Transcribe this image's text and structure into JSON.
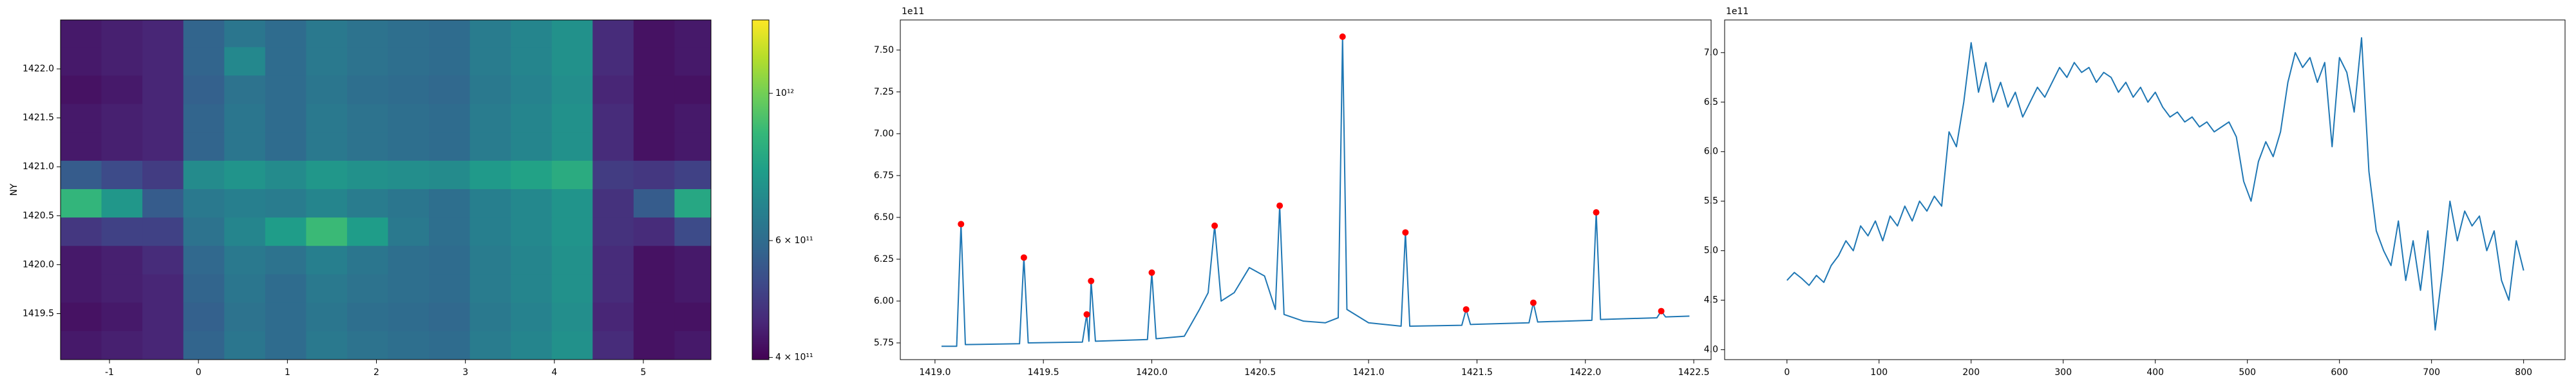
{
  "chart_data": [
    {
      "type": "heatmap",
      "ylabel": "NY",
      "colormap": "viridis",
      "log_color": true,
      "xlim": [
        -1.55,
        5.76
      ],
      "ylim": [
        1419.03,
        1422.5
      ],
      "xticks": [
        -1,
        0,
        1,
        2,
        3,
        4,
        5
      ],
      "yticks": [
        1419.5,
        {
          "value": 1420,
          "label": "1420.0"
        },
        1420.5,
        {
          "value": 1421,
          "label": "1421.0"
        },
        1421.5,
        {
          "value": 1422,
          "label": "1422.0"
        }
      ],
      "clim": [
        397000000000.0,
        1290000000000.0
      ],
      "cticks": [
        {
          "value": 400000000000.0,
          "label": "4 × 10¹¹"
        },
        {
          "value": 600000000000.0,
          "label": "6 × 10¹¹"
        },
        {
          "value": 1000000000000.0,
          "label": "10¹²"
        }
      ],
      "x": [
        -1.32,
        -0.86,
        -0.4,
        0.06,
        0.52,
        0.98,
        1.44,
        1.9,
        2.36,
        2.82,
        3.28,
        3.74,
        4.2,
        4.66,
        5.12,
        5.58
      ],
      "y": [
        1419.18,
        1419.47,
        1419.76,
        1420.05,
        1420.34,
        1420.63,
        1420.92,
        1421.21,
        1421.5,
        1421.79,
        1422.08,
        1422.37
      ],
      "z": [
        [
          430000000000.0,
          440000000000.0,
          450000000000.0,
          580000000000.0,
          630000000000.0,
          600000000000.0,
          640000000000.0,
          620000000000.0,
          610000000000.0,
          600000000000.0,
          650000000000.0,
          680000000000.0,
          720000000000.0,
          460000000000.0,
          420000000000.0,
          430000000000.0
        ],
        [
          420000000000.0,
          430000000000.0,
          450000000000.0,
          570000000000.0,
          620000000000.0,
          600000000000.0,
          630000000000.0,
          610000000000.0,
          600000000000.0,
          590000000000.0,
          640000000000.0,
          670000000000.0,
          710000000000.0,
          450000000000.0,
          420000000000.0,
          420000000000.0
        ],
        [
          430000000000.0,
          440000000000.0,
          450000000000.0,
          580000000000.0,
          630000000000.0,
          600000000000.0,
          640000000000.0,
          620000000000.0,
          610000000000.0,
          600000000000.0,
          650000000000.0,
          680000000000.0,
          720000000000.0,
          460000000000.0,
          420000000000.0,
          430000000000.0
        ],
        [
          430000000000.0,
          440000000000.0,
          460000000000.0,
          590000000000.0,
          640000000000.0,
          620000000000.0,
          660000000000.0,
          630000000000.0,
          610000000000.0,
          600000000000.0,
          650000000000.0,
          680000000000.0,
          720000000000.0,
          460000000000.0,
          420000000000.0,
          430000000000.0
        ],
        [
          480000000000.0,
          500000000000.0,
          500000000000.0,
          620000000000.0,
          680000000000.0,
          760000000000.0,
          880000000000.0,
          760000000000.0,
          640000000000.0,
          610000000000.0,
          660000000000.0,
          690000000000.0,
          730000000000.0,
          470000000000.0,
          460000000000.0,
          520000000000.0
        ],
        [
          860000000000.0,
          740000000000.0,
          560000000000.0,
          640000000000.0,
          660000000000.0,
          650000000000.0,
          680000000000.0,
          650000000000.0,
          630000000000.0,
          610000000000.0,
          660000000000.0,
          690000000000.0,
          730000000000.0,
          470000000000.0,
          560000000000.0,
          800000000000.0
        ],
        [
          560000000000.0,
          520000000000.0,
          490000000000.0,
          700000000000.0,
          730000000000.0,
          700000000000.0,
          740000000000.0,
          720000000000.0,
          710000000000.0,
          700000000000.0,
          750000000000.0,
          780000000000.0,
          820000000000.0,
          490000000000.0,
          480000000000.0,
          500000000000.0
        ],
        [
          430000000000.0,
          440000000000.0,
          450000000000.0,
          580000000000.0,
          630000000000.0,
          600000000000.0,
          640000000000.0,
          620000000000.0,
          610000000000.0,
          600000000000.0,
          650000000000.0,
          680000000000.0,
          720000000000.0,
          460000000000.0,
          420000000000.0,
          430000000000.0
        ],
        [
          430000000000.0,
          440000000000.0,
          450000000000.0,
          580000000000.0,
          630000000000.0,
          600000000000.0,
          640000000000.0,
          620000000000.0,
          610000000000.0,
          600000000000.0,
          650000000000.0,
          680000000000.0,
          720000000000.0,
          460000000000.0,
          420000000000.0,
          430000000000.0
        ],
        [
          420000000000.0,
          430000000000.0,
          450000000000.0,
          570000000000.0,
          620000000000.0,
          600000000000.0,
          630000000000.0,
          610000000000.0,
          600000000000.0,
          590000000000.0,
          640000000000.0,
          670000000000.0,
          710000000000.0,
          450000000000.0,
          420000000000.0,
          420000000000.0
        ],
        [
          430000000000.0,
          440000000000.0,
          450000000000.0,
          580000000000.0,
          690000000000.0,
          600000000000.0,
          640000000000.0,
          620000000000.0,
          610000000000.0,
          600000000000.0,
          650000000000.0,
          680000000000.0,
          720000000000.0,
          460000000000.0,
          420000000000.0,
          430000000000.0
        ],
        [
          430000000000.0,
          440000000000.0,
          450000000000.0,
          580000000000.0,
          630000000000.0,
          600000000000.0,
          640000000000.0,
          620000000000.0,
          610000000000.0,
          600000000000.0,
          650000000000.0,
          680000000000.0,
          720000000000.0,
          460000000000.0,
          420000000000.0,
          430000000000.0
        ]
      ]
    },
    {
      "type": "line",
      "offset_text": "1e11",
      "xlim": [
        1418.84,
        1422.58
      ],
      "ylim": [
        5.65,
        7.68
      ],
      "xticks": [
        {
          "value": 1419,
          "label": "1419.0"
        },
        1419.5,
        {
          "value": 1420,
          "label": "1420.0"
        },
        1420.5,
        {
          "value": 1421,
          "label": "1421.0"
        },
        1421.5,
        {
          "value": 1422,
          "label": "1422.0"
        },
        1422.5
      ],
      "yticks": [
        5.75,
        {
          "value": 6,
          "label": "6.00"
        },
        6.25,
        {
          "value": 6.5,
          "label": "6.50"
        },
        6.75,
        {
          "value": 7,
          "label": "7.00"
        },
        7.25,
        {
          "value": 7.5,
          "label": "7.50"
        }
      ],
      "series": [
        {
          "color": "#1f77b4",
          "x": [
            1419.03,
            1419.1,
            1419.12,
            1419.14,
            1419.39,
            1419.41,
            1419.43,
            1419.68,
            1419.7,
            1419.71,
            1419.72,
            1419.74,
            1419.98,
            1420.0,
            1420.02,
            1420.15,
            1420.22,
            1420.26,
            1420.29,
            1420.32,
            1420.38,
            1420.45,
            1420.52,
            1420.57,
            1420.59,
            1420.61,
            1420.7,
            1420.8,
            1420.86,
            1420.88,
            1420.9,
            1421.0,
            1421.15,
            1421.17,
            1421.19,
            1421.43,
            1421.45,
            1421.47,
            1421.74,
            1421.76,
            1421.78,
            1422.03,
            1422.05,
            1422.07,
            1422.33,
            1422.35,
            1422.37,
            1422.48
          ],
          "values": [
            5.73,
            5.73,
            6.46,
            5.74,
            5.745,
            6.26,
            5.75,
            5.755,
            5.92,
            5.76,
            6.12,
            5.76,
            5.77,
            6.17,
            5.775,
            5.79,
            5.95,
            6.05,
            6.45,
            6.0,
            6.05,
            6.2,
            6.15,
            5.95,
            6.57,
            5.92,
            5.88,
            5.87,
            5.9,
            7.58,
            5.95,
            5.87,
            5.85,
            6.41,
            5.85,
            5.855,
            5.95,
            5.86,
            5.87,
            5.99,
            5.875,
            5.885,
            6.53,
            5.89,
            5.9,
            5.94,
            5.905,
            5.91
          ]
        },
        {
          "color": "red",
          "marker": "o",
          "x": [
            1419.12,
            1419.41,
            1419.7,
            1419.72,
            1420.0,
            1420.29,
            1420.59,
            1420.88,
            1421.17,
            1421.45,
            1421.76,
            1422.05,
            1422.35
          ],
          "values": [
            6.46,
            6.26,
            5.92,
            6.12,
            6.17,
            6.45,
            6.57,
            7.58,
            6.41,
            5.95,
            5.99,
            6.53,
            5.94
          ]
        }
      ]
    },
    {
      "type": "line",
      "offset_text": "1e11",
      "xlim": [
        -67.7,
        845
      ],
      "ylim": [
        3.9,
        7.33
      ],
      "xticks": [
        0,
        100,
        200,
        300,
        400,
        500,
        600,
        700,
        800
      ],
      "yticks": [
        {
          "value": 4,
          "label": "4.0"
        },
        4.5,
        {
          "value": 5,
          "label": "5.0"
        },
        5.5,
        {
          "value": 6,
          "label": "6.0"
        },
        6.5,
        {
          "value": 7,
          "label": "7.0"
        }
      ],
      "series": [
        {
          "color": "#1f77b4",
          "x": [
            0,
            8,
            16,
            24,
            32,
            40,
            48,
            56,
            64,
            72,
            80,
            88,
            96,
            104,
            112,
            120,
            128,
            136,
            144,
            152,
            160,
            168,
            176,
            184,
            192,
            200,
            208,
            216,
            224,
            232,
            240,
            248,
            256,
            264,
            272,
            280,
            288,
            296,
            304,
            312,
            320,
            328,
            336,
            344,
            352,
            360,
            368,
            376,
            384,
            392,
            400,
            408,
            416,
            424,
            432,
            440,
            448,
            456,
            464,
            472,
            480,
            488,
            496,
            504,
            512,
            520,
            528,
            536,
            544,
            552,
            560,
            568,
            576,
            584,
            592,
            600,
            608,
            616,
            624,
            632,
            640,
            648,
            656,
            664,
            672,
            680,
            688,
            696,
            704,
            712,
            720,
            728,
            736,
            744,
            752,
            760,
            768,
            776,
            784,
            792,
            800
          ],
          "values": [
            4.7,
            4.78,
            4.72,
            4.65,
            4.75,
            4.68,
            4.85,
            4.95,
            5.1,
            5.0,
            5.25,
            5.15,
            5.3,
            5.1,
            5.35,
            5.25,
            5.45,
            5.3,
            5.5,
            5.4,
            5.55,
            5.45,
            6.2,
            6.05,
            6.5,
            7.1,
            6.6,
            6.9,
            6.5,
            6.7,
            6.45,
            6.6,
            6.35,
            6.5,
            6.65,
            6.55,
            6.7,
            6.85,
            6.75,
            6.9,
            6.8,
            6.85,
            6.7,
            6.8,
            6.75,
            6.6,
            6.7,
            6.55,
            6.65,
            6.5,
            6.6,
            6.45,
            6.35,
            6.4,
            6.3,
            6.35,
            6.25,
            6.3,
            6.2,
            6.25,
            6.3,
            6.15,
            5.7,
            5.5,
            5.9,
            6.1,
            5.95,
            6.2,
            6.7,
            7.0,
            6.85,
            6.95,
            6.7,
            6.9,
            6.05,
            6.95,
            6.8,
            6.4,
            7.15,
            5.8,
            5.2,
            5.0,
            4.85,
            5.3,
            4.7,
            5.1,
            4.6,
            5.2,
            4.2,
            4.8,
            5.5,
            5.1,
            5.4,
            5.25,
            5.35,
            5.0,
            5.2,
            4.7,
            4.5,
            5.1,
            4.8
          ]
        }
      ]
    }
  ]
}
